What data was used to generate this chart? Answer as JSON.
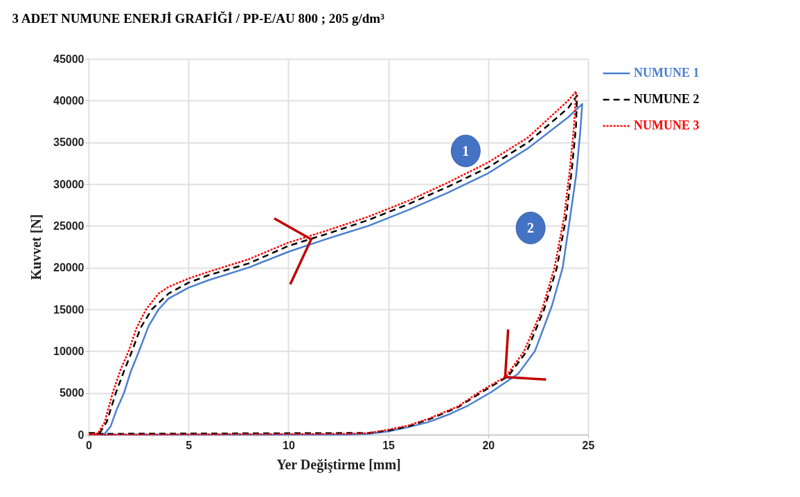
{
  "chart_data": {
    "type": "line",
    "title": "3 ADET NUMUNE ENERJİ GRAFİĞİ  /  PP-E/AU 800 ; 205 g/dm³",
    "xlabel": "Yer Değiştirme [mm]",
    "ylabel": "Kuvvet [N]",
    "xlim": [
      0,
      25
    ],
    "ylim": [
      0,
      45000
    ],
    "xticks": [
      0,
      5,
      10,
      15,
      20,
      25
    ],
    "yticks": [
      0,
      5000,
      10000,
      15000,
      20000,
      25000,
      30000,
      35000,
      40000,
      45000
    ],
    "grid": true,
    "legend": "right",
    "annotations": [
      "1",
      "2"
    ],
    "series": [
      {
        "name": "NUMUNE 1",
        "color": "#4a7fd0",
        "line_style": "solid",
        "x": [
          0,
          0.8,
          1.1,
          1.4,
          1.77,
          2.1,
          2.52,
          3.0,
          3.5,
          4,
          5,
          6,
          8,
          10,
          12,
          14,
          16,
          18,
          20,
          22,
          24,
          24.71,
          24.6,
          24.4,
          24.1,
          23.73,
          23.2,
          22.34,
          21.5,
          20.15,
          19,
          18,
          17,
          16,
          15,
          14,
          13,
          0
        ],
        "values": [
          100,
          100,
          1000,
          3000,
          5000,
          7500,
          10000,
          13000,
          15000,
          16300,
          17600,
          18500,
          20000,
          21900,
          23500,
          25000,
          26900,
          29000,
          31300,
          34300,
          38000,
          39600,
          36000,
          31000,
          26000,
          20000,
          15500,
          10000,
          7300,
          5100,
          3500,
          2400,
          1500,
          900,
          400,
          100,
          0,
          0
        ]
      },
      {
        "name": "NUMUNE 2",
        "color": "#000000",
        "line_style": "dashed",
        "x": [
          0,
          0.55,
          0.9,
          1.36,
          1.8,
          2.17,
          2.6,
          3.16,
          4,
          5,
          6,
          8,
          10,
          12,
          14,
          16,
          18,
          20,
          22,
          24,
          24.45,
          24.4,
          24.2,
          23.9,
          23.44,
          22.8,
          21.94,
          21,
          19.68,
          18.5,
          17,
          16,
          15,
          14,
          13,
          0
        ],
        "values": [
          200,
          200,
          1500,
          5000,
          7800,
          10000,
          12800,
          15000,
          16900,
          18200,
          19100,
          20500,
          22600,
          24100,
          25700,
          27600,
          29700,
          32000,
          35000,
          39100,
          40600,
          37000,
          32000,
          26000,
          20000,
          15000,
          10000,
          7000,
          5100,
          3300,
          1800,
          1000,
          500,
          200,
          200,
          100
        ]
      },
      {
        "name": "NUMUNE 3",
        "color": "#ff0000",
        "line_style": "dotted",
        "x": [
          0,
          0.45,
          0.8,
          1.2,
          1.6,
          2.0,
          2.4,
          2.87,
          3.5,
          4,
          5,
          6,
          8,
          10,
          12,
          14,
          16,
          18,
          20,
          22,
          24,
          24.4,
          24.3,
          24.1,
          23.8,
          23.32,
          22.7,
          21.8,
          20.9,
          19.55,
          18.5,
          17,
          16,
          15,
          14,
          13,
          0
        ],
        "values": [
          100,
          100,
          1500,
          5000,
          7800,
          10000,
          12800,
          15000,
          16900,
          17700,
          18700,
          19500,
          21000,
          23000,
          24500,
          26100,
          28000,
          30200,
          32600,
          35600,
          40000,
          41100,
          37000,
          32000,
          26000,
          20000,
          15000,
          10000,
          7000,
          5100,
          3400,
          1900,
          1100,
          600,
          200,
          100,
          0
        ]
      }
    ]
  }
}
